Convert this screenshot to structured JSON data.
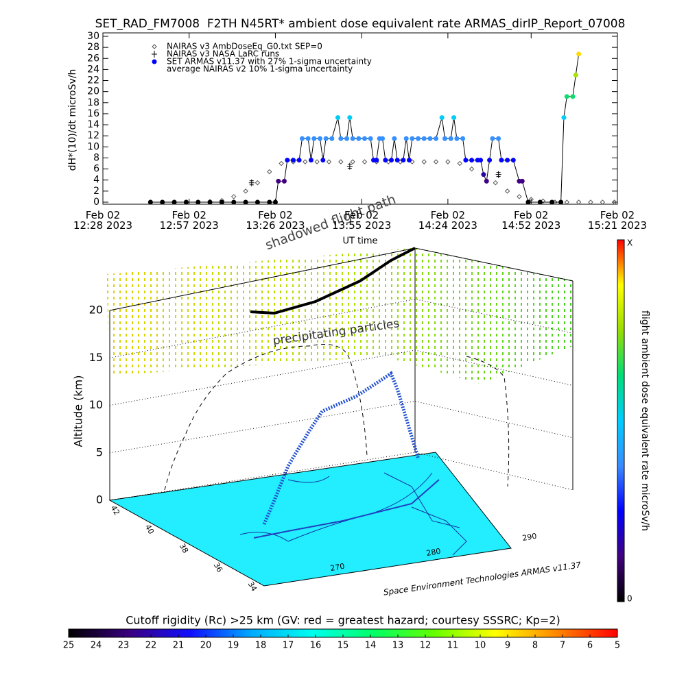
{
  "chart_data": [
    {
      "type": "scatter-line",
      "title": "SET_RAD_FM7008  F2TH N45RT* ambient dose equivalent rate ARMAS_dirIP_Report_07008",
      "x_label": "UT time",
      "y_label": "dH*(10)/dt microSv/h",
      "xlim": [
        "2023-02-02T12:28",
        "2023-02-02T15:21"
      ],
      "xticks": [
        {
          "value": "2023-02-02T12:28",
          "label": "Feb 02\n12:28 2023"
        },
        {
          "value": "2023-02-02T12:57",
          "label": "Feb 02\n12:57 2023"
        },
        {
          "value": "2023-02-02T13:26",
          "label": "Feb 02\n13:26 2023"
        },
        {
          "value": "2023-02-02T13:55",
          "label": "Feb 02\n13:55 2023"
        },
        {
          "value": "2023-02-02T14:24",
          "label": "Feb 02\n14:24 2023"
        },
        {
          "value": "2023-02-02T14:52",
          "label": "Feb 02\n14:52 2023"
        },
        {
          "value": "2023-02-02T15:21",
          "label": "Feb 02\n15:21 2023"
        }
      ],
      "ylim": [
        0,
        30
      ],
      "yticks": [
        0,
        2,
        4,
        6,
        8,
        10,
        12,
        14,
        16,
        18,
        20,
        22,
        24,
        26,
        28,
        30
      ],
      "colormap": [
        "#000000",
        "#40007f",
        "#0000ff",
        "#3a8cff",
        "#00ccff",
        "#00dd77",
        "#99dd00",
        "#ffff00",
        "#ff0000"
      ],
      "series": [
        {
          "name": "NAIRAS v3 AmbDoseEq_G0.txt SEP=0",
          "marker": "diamond",
          "color": "#555555",
          "x": [
            "2023-02-02T12:44",
            "2023-02-02T12:48",
            "2023-02-02T12:52",
            "2023-02-02T12:56",
            "2023-02-02T13:00",
            "2023-02-02T13:04",
            "2023-02-02T13:08",
            "2023-02-02T13:12",
            "2023-02-02T13:16",
            "2023-02-02T13:20",
            "2023-02-02T13:24",
            "2023-02-02T13:28",
            "2023-02-02T13:32",
            "2023-02-02T13:36",
            "2023-02-02T13:40",
            "2023-02-02T13:44",
            "2023-02-02T13:48",
            "2023-02-02T13:52",
            "2023-02-02T13:56",
            "2023-02-02T14:00",
            "2023-02-02T14:04",
            "2023-02-02T14:08",
            "2023-02-02T14:12",
            "2023-02-02T14:16",
            "2023-02-02T14:20",
            "2023-02-02T14:24",
            "2023-02-02T14:28",
            "2023-02-02T14:32",
            "2023-02-02T14:36",
            "2023-02-02T14:40",
            "2023-02-02T14:44",
            "2023-02-02T14:48",
            "2023-02-02T14:52",
            "2023-02-02T14:56",
            "2023-02-02T15:00",
            "2023-02-02T15:04",
            "2023-02-02T15:08",
            "2023-02-02T15:12",
            "2023-02-02T15:16",
            "2023-02-02T15:20"
          ],
          "values": [
            0,
            0,
            0,
            0,
            0,
            0.1,
            0.3,
            1,
            2,
            3.5,
            5.5,
            7,
            7.3,
            7.3,
            7.3,
            7.3,
            7.3,
            7.3,
            7.3,
            7.3,
            7.3,
            7.3,
            7.3,
            7.3,
            7.3,
            7.3,
            7,
            6,
            5,
            3.5,
            2,
            1,
            0.5,
            0.2,
            0,
            0,
            0,
            0,
            0,
            0
          ]
        },
        {
          "name": "NAIRAS v3 NASA LaRC runs",
          "marker": "plus",
          "color": "#000000",
          "x": [
            "2023-02-02T13:18",
            "2023-02-02T13:51",
            "2023-02-02T14:41"
          ],
          "values": [
            3.5,
            6.5,
            5
          ]
        },
        {
          "name": "SET ARMAS v11.37 with 27% 1-sigma uncertainty",
          "marker": "circle",
          "color": "#0000ff",
          "line_color": "#000000",
          "x": [
            "2023-02-02T12:44",
            "2023-02-02T12:48",
            "2023-02-02T12:52",
            "2023-02-02T12:56",
            "2023-02-02T13:00",
            "2023-02-02T13:04",
            "2023-02-02T13:08",
            "2023-02-02T13:12",
            "2023-02-02T13:16",
            "2023-02-02T13:20",
            "2023-02-02T13:24",
            "2023-02-02T13:26",
            "2023-02-02T13:27",
            "2023-02-02T13:29",
            "2023-02-02T13:30",
            "2023-02-02T13:32",
            "2023-02-02T13:34",
            "2023-02-02T13:35",
            "2023-02-02T13:37",
            "2023-02-02T13:38",
            "2023-02-02T13:39",
            "2023-02-02T13:41",
            "2023-02-02T13:42",
            "2023-02-02T13:43",
            "2023-02-02T13:45",
            "2023-02-02T13:47",
            "2023-02-02T13:48",
            "2023-02-02T13:50",
            "2023-02-02T13:51",
            "2023-02-02T13:52",
            "2023-02-02T13:54",
            "2023-02-02T13:56",
            "2023-02-02T13:58",
            "2023-02-02T13:59",
            "2023-02-02T14:00",
            "2023-02-02T14:01",
            "2023-02-02T14:02",
            "2023-02-02T14:03",
            "2023-02-02T14:05",
            "2023-02-02T14:06",
            "2023-02-02T14:07",
            "2023-02-02T14:09",
            "2023-02-02T14:10",
            "2023-02-02T14:11",
            "2023-02-02T14:12",
            "2023-02-02T14:14",
            "2023-02-02T14:16",
            "2023-02-02T14:18",
            "2023-02-02T14:20",
            "2023-02-02T14:22",
            "2023-02-02T14:23",
            "2023-02-02T14:25",
            "2023-02-02T14:26",
            "2023-02-02T14:27",
            "2023-02-02T14:29",
            "2023-02-02T14:30",
            "2023-02-02T14:32",
            "2023-02-02T14:34",
            "2023-02-02T14:35",
            "2023-02-02T14:36",
            "2023-02-02T14:37",
            "2023-02-02T14:38",
            "2023-02-02T14:39",
            "2023-02-02T14:41",
            "2023-02-02T14:42",
            "2023-02-02T14:44",
            "2023-02-02T14:46",
            "2023-02-02T14:48",
            "2023-02-02T14:49",
            "2023-02-02T14:51",
            "2023-02-02T14:55",
            "2023-02-02T14:59",
            "2023-02-02T15:02",
            "2023-02-02T15:03",
            "2023-02-02T15:04",
            "2023-02-02T15:06",
            "2023-02-02T15:07",
            "2023-02-02T15:08"
          ],
          "values": [
            0,
            0,
            0,
            0,
            0,
            0,
            0,
            0,
            0,
            0,
            0,
            0,
            3.8,
            3.8,
            7.6,
            7.6,
            7.6,
            11.5,
            11.5,
            7.6,
            11.5,
            11.5,
            7.6,
            11.5,
            11.5,
            15.3,
            11.5,
            11.5,
            15.3,
            11.5,
            11.5,
            11.5,
            11.5,
            7.6,
            7.6,
            11.5,
            11.5,
            7.6,
            7.6,
            11.5,
            7.6,
            7.6,
            11.5,
            7.6,
            11.5,
            11.5,
            11.5,
            11.5,
            11.5,
            15.3,
            11.5,
            11.5,
            15.3,
            11.5,
            11.5,
            7.6,
            7.6,
            7.6,
            7.6,
            5,
            3.8,
            7.6,
            11.5,
            11.5,
            7.6,
            7.6,
            7.6,
            3.8,
            3.8,
            0,
            0,
            0,
            0,
            15.3,
            19.1,
            19.1,
            23,
            26.8
          ]
        },
        {
          "name": "average NAIRAS v2 10% 1-sigma uncertainty",
          "marker": "none",
          "color": "#000000",
          "x": [],
          "values": []
        }
      ]
    },
    {
      "type": "3d-scene",
      "z_label": "Altitude (km)",
      "zlim": [
        0,
        20
      ],
      "zticks": [
        0,
        5,
        10,
        15,
        20
      ],
      "latlim": [
        42.5,
        33.5
      ],
      "lat_ticks": [
        42,
        40,
        38,
        36,
        34
      ],
      "lonlim": [
        262,
        292
      ],
      "lon_ticks": [
        270,
        280,
        290
      ],
      "annotations": [
        "shadowed flight path",
        "precipitating particles"
      ],
      "credit": "Space Environment Technologies ARMAS v11.37",
      "ground_color": "#22eeff"
    },
    {
      "type": "colorbar",
      "title": "Cutoff rigidity (Rc) >25 km (GV: red = greatest hazard; courtesy SSSRC; Kp=2)",
      "xlim": [
        25,
        5
      ],
      "xticks": [
        25,
        24,
        23,
        22,
        21,
        20,
        19,
        18,
        17,
        16,
        15,
        14,
        13,
        12,
        11,
        10,
        9,
        8,
        7,
        6,
        5
      ],
      "colors": [
        "#000000",
        "#3a0080",
        "#1010ff",
        "#00aaff",
        "#00ffee",
        "#00ff66",
        "#66ff00",
        "#ffff00",
        "#ff8800",
        "#ff0000"
      ]
    },
    {
      "type": "colorbar",
      "label": "flight ambient dose equivalent rate microSv/h",
      "yticks": [
        0
      ],
      "top_label": "X"
    }
  ]
}
